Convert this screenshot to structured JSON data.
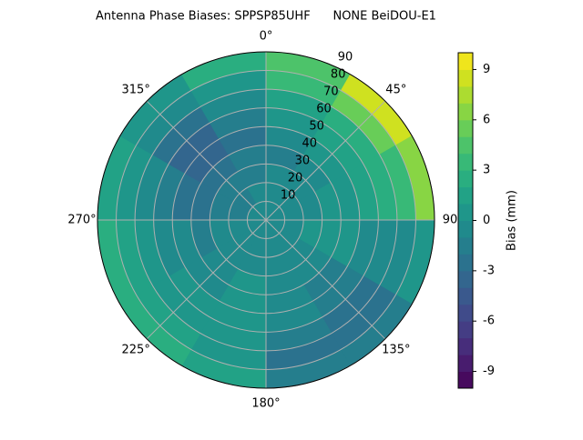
{
  "chart_data": {
    "type": "polar_contour",
    "title": "Antenna Phase Biases: SPPSP85UHF      NONE BeiDOU-E1",
    "theta_zero": "top",
    "theta_direction": "clockwise",
    "thetaticks": [
      {
        "value": 0,
        "label": "0°"
      },
      {
        "value": 45,
        "label": "45°"
      },
      90,
      {
        "value": 135,
        "label": "135°"
      },
      {
        "value": 180,
        "label": "180°"
      },
      {
        "value": 225,
        "label": "225°"
      },
      {
        "value": 270,
        "label": "270°"
      },
      {
        "value": 315,
        "label": "315°"
      }
    ],
    "rlim": [
      0,
      90
    ],
    "rticks": [
      10,
      20,
      30,
      40,
      50,
      60,
      70,
      80,
      90
    ],
    "grid": true,
    "field": {
      "azimuth_edges": [
        0,
        30,
        60,
        90,
        120,
        150,
        180,
        210,
        240,
        270,
        300,
        330,
        360
      ],
      "radius_edges": [
        0,
        10,
        20,
        30,
        40,
        50,
        60,
        70,
        80,
        90
      ],
      "values": [
        [
          -1,
          -1,
          -1,
          -1.5,
          -1,
          0,
          1,
          3,
          4
        ],
        [
          -1,
          -1,
          -1,
          -1,
          0,
          1,
          2,
          5,
          8
        ],
        [
          -1,
          -1,
          -0.5,
          0,
          0,
          1,
          2,
          3,
          6
        ],
        [
          -1,
          -0.5,
          0,
          0,
          0,
          -0.5,
          -1,
          -1,
          0
        ],
        [
          -1,
          -1,
          -1,
          -1,
          -1.5,
          -2,
          -3,
          -3,
          -2
        ],
        [
          -1,
          -1,
          -1,
          -0.5,
          -0.5,
          -1,
          -2,
          -3,
          -2
        ],
        [
          -1,
          -1,
          -0.5,
          0,
          0,
          0,
          0,
          0.5,
          1
        ],
        [
          -1,
          -1,
          -1,
          -1,
          -0.5,
          0,
          0.5,
          1,
          2
        ],
        [
          -1,
          -1,
          -1,
          -1.5,
          -1,
          -0.5,
          0,
          1,
          2
        ],
        [
          -1,
          -1.5,
          -2,
          -2.5,
          -3,
          -2,
          -1,
          0,
          1
        ],
        [
          -1,
          -1.5,
          -2,
          -3,
          -3.5,
          -3.5,
          -3,
          -1,
          0.5
        ],
        [
          -1,
          -1,
          -1.5,
          -2,
          -2.5,
          -2,
          -1,
          0.5,
          2
        ]
      ]
    },
    "colormap": "viridis",
    "clim": [
      -10,
      10
    ],
    "level_step": 1,
    "colorbar_ticks": [
      -9,
      -6,
      -3,
      0,
      3,
      6,
      9
    ],
    "colorbar_label": "Bias (mm)"
  }
}
